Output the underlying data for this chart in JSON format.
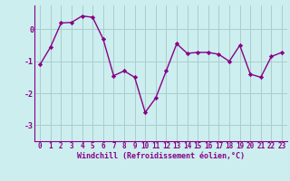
{
  "x": [
    0,
    1,
    2,
    3,
    4,
    5,
    6,
    7,
    8,
    9,
    10,
    11,
    12,
    13,
    14,
    15,
    16,
    17,
    18,
    19,
    20,
    21,
    22,
    23
  ],
  "y": [
    -1.1,
    -0.55,
    0.2,
    0.22,
    0.42,
    0.38,
    -0.3,
    -1.45,
    -1.3,
    -1.5,
    -2.6,
    -2.15,
    -1.3,
    -0.45,
    -0.75,
    -0.72,
    -0.72,
    -0.78,
    -1.0,
    -0.5,
    -1.4,
    -1.5,
    -0.85,
    -0.72
  ],
  "line_color": "#880088",
  "marker": "D",
  "markersize": 2.2,
  "linewidth": 1.0,
  "xlabel": "Windchill (Refroidissement éolien,°C)",
  "xlabel_fontsize": 6.0,
  "xtick_labels": [
    "0",
    "1",
    "2",
    "3",
    "4",
    "5",
    "6",
    "7",
    "8",
    "9",
    "10",
    "11",
    "12",
    "13",
    "14",
    "15",
    "16",
    "17",
    "18",
    "19",
    "20",
    "21",
    "22",
    "23"
  ],
  "yticks": [
    -3,
    -2,
    -1,
    0
  ],
  "ylim": [
    -3.5,
    0.75
  ],
  "xlim": [
    -0.5,
    23.5
  ],
  "background_color": "#cceeee",
  "grid_color": "#aacccc",
  "tick_fontsize": 5.5,
  "tick_color": "#880088",
  "label_color": "#880088"
}
